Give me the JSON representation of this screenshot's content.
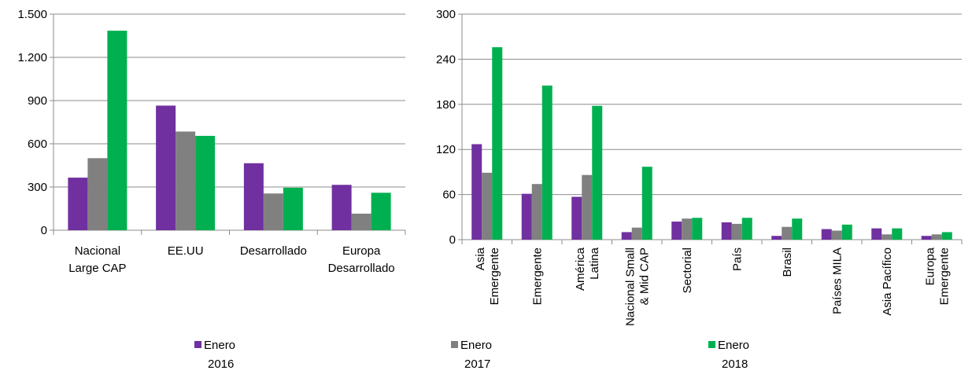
{
  "colors": {
    "s2016": "#7030a0",
    "s2017": "#808080",
    "s2018": "#00b050"
  },
  "legend": [
    {
      "line1": "Enero",
      "line2": "2016",
      "color": "#7030a0"
    },
    {
      "line1": "Enero",
      "line2": "2017",
      "color": "#808080"
    },
    {
      "line1": "Enero",
      "line2": "2018",
      "color": "#00b050"
    }
  ],
  "chart_data": [
    {
      "type": "bar",
      "title": "",
      "xlabel": "",
      "ylabel": "",
      "ylim": [
        0,
        1500
      ],
      "yticks": [
        0,
        300,
        600,
        900,
        1200,
        1500
      ],
      "ytick_labels": [
        "0",
        "300",
        "600",
        "900",
        "1.200",
        "1.500"
      ],
      "grid": true,
      "categories": [
        [
          "Nacional",
          "Large CAP"
        ],
        [
          "EE.UU"
        ],
        [
          "Desarrollado"
        ],
        [
          "Europa",
          "Desarrollado"
        ]
      ],
      "series": [
        {
          "name": "Enero 2016",
          "values": [
            365,
            865,
            465,
            315
          ]
        },
        {
          "name": "Enero 2017",
          "values": [
            500,
            685,
            255,
            115
          ]
        },
        {
          "name": "Enero 2018",
          "values": [
            1385,
            655,
            295,
            260
          ]
        }
      ]
    },
    {
      "type": "bar",
      "title": "",
      "xlabel": "",
      "ylabel": "",
      "ylim": [
        0,
        300
      ],
      "yticks": [
        0,
        60,
        120,
        180,
        240,
        300
      ],
      "ytick_labels": [
        "0",
        "60",
        "120",
        "180",
        "240",
        "300"
      ],
      "grid": true,
      "rotated_labels": true,
      "categories": [
        [
          "Asia",
          "Emergente"
        ],
        [
          "Emergente"
        ],
        [
          "América",
          "Latina"
        ],
        [
          "Nacional Small",
          "& Mid CAP"
        ],
        [
          "Sectorial"
        ],
        [
          "País"
        ],
        [
          "Brasil"
        ],
        [
          "Países MILA"
        ],
        [
          "Asia Pacífico"
        ],
        [
          "Europa",
          "Emergente"
        ]
      ],
      "series": [
        {
          "name": "Enero 2016",
          "values": [
            127,
            61,
            57,
            10,
            24,
            23,
            5,
            14,
            15,
            5
          ]
        },
        {
          "name": "Enero 2017",
          "values": [
            89,
            74,
            86,
            16,
            28,
            21,
            17,
            12,
            7,
            7
          ]
        },
        {
          "name": "Enero 2018",
          "values": [
            256,
            205,
            178,
            97,
            29,
            29,
            28,
            20,
            15,
            10
          ]
        }
      ]
    }
  ]
}
